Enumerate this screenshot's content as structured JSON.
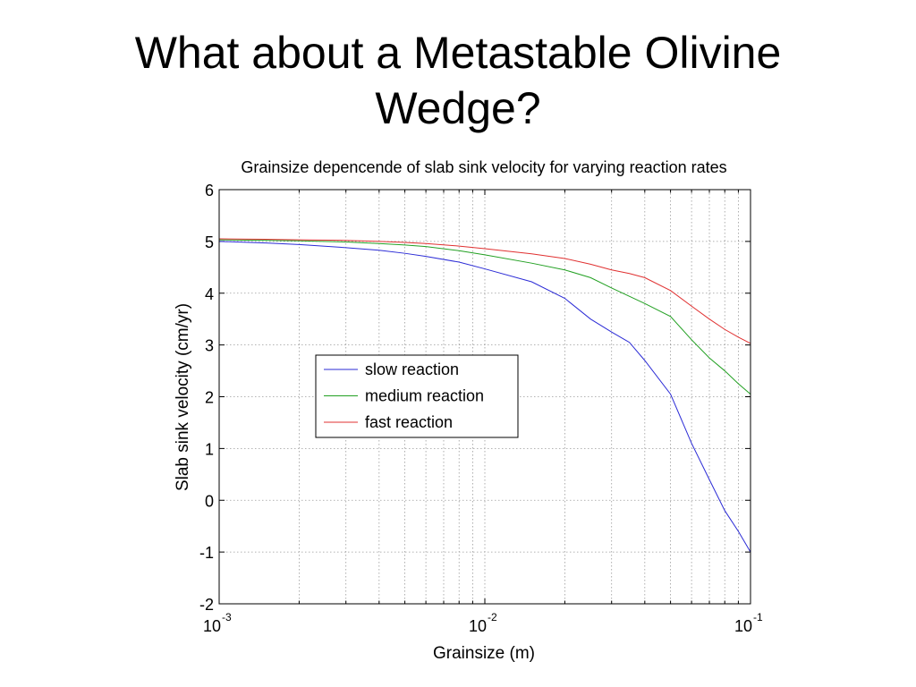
{
  "slide": {
    "title_line1": "What about a Metastable Olivine",
    "title_line2": "Wedge?"
  },
  "chart_data": {
    "type": "line",
    "title": "Grainsize depencende of slab sink velocity for varying reaction rates",
    "xlabel": "Grainsize (m)",
    "ylabel": "Slab sink velocity (cm/yr)",
    "xscale": "log",
    "xlim": [
      0.001,
      0.1
    ],
    "ylim": [
      -2,
      6
    ],
    "xticks": [
      {
        "base": "10",
        "exp": "-3",
        "value": 0.001
      },
      {
        "base": "10",
        "exp": "-2",
        "value": 0.01
      },
      {
        "base": "10",
        "exp": "-1",
        "value": 0.1
      }
    ],
    "yticks": [
      -2,
      -1,
      0,
      1,
      2,
      3,
      4,
      5,
      6
    ],
    "grid": true,
    "legend_position": "center-left",
    "series": [
      {
        "name": "slow reaction",
        "color": "#2b2bd6",
        "x": [
          0.001,
          0.0015,
          0.002,
          0.003,
          0.004,
          0.005,
          0.006,
          0.008,
          0.01,
          0.015,
          0.02,
          0.025,
          0.03,
          0.035,
          0.04,
          0.05,
          0.06,
          0.07,
          0.08,
          0.09,
          0.1
        ],
        "y": [
          5.0,
          4.97,
          4.94,
          4.88,
          4.83,
          4.77,
          4.71,
          4.6,
          4.47,
          4.22,
          3.9,
          3.5,
          3.25,
          3.05,
          2.7,
          2.05,
          1.1,
          0.4,
          -0.2,
          -0.6,
          -1.0
        ]
      },
      {
        "name": "medium reaction",
        "color": "#22a022",
        "x": [
          0.001,
          0.0015,
          0.002,
          0.003,
          0.004,
          0.005,
          0.006,
          0.008,
          0.01,
          0.015,
          0.02,
          0.025,
          0.03,
          0.04,
          0.05,
          0.06,
          0.07,
          0.08,
          0.09,
          0.1
        ],
        "y": [
          5.03,
          5.02,
          5.01,
          4.99,
          4.96,
          4.93,
          4.9,
          4.82,
          4.74,
          4.58,
          4.45,
          4.3,
          4.1,
          3.8,
          3.55,
          3.1,
          2.75,
          2.5,
          2.25,
          2.05
        ]
      },
      {
        "name": "fast reaction",
        "color": "#e03030",
        "x": [
          0.001,
          0.0015,
          0.002,
          0.003,
          0.004,
          0.005,
          0.006,
          0.008,
          0.01,
          0.015,
          0.02,
          0.025,
          0.03,
          0.035,
          0.04,
          0.05,
          0.06,
          0.07,
          0.08,
          0.09,
          0.1
        ],
        "y": [
          5.05,
          5.04,
          5.03,
          5.02,
          5.0,
          4.98,
          4.96,
          4.91,
          4.86,
          4.76,
          4.67,
          4.56,
          4.45,
          4.38,
          4.3,
          4.05,
          3.75,
          3.5,
          3.3,
          3.15,
          3.03
        ]
      }
    ]
  }
}
